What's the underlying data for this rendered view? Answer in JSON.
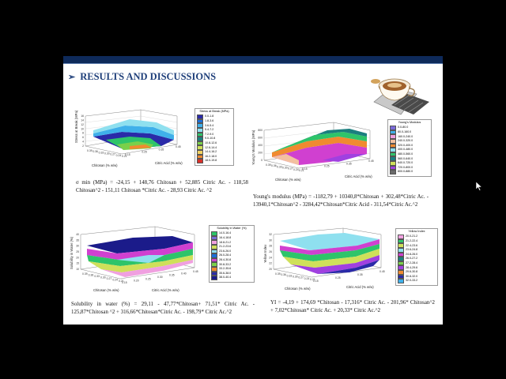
{
  "slide": {
    "title": "RESULTS AND DISCUSSIONS",
    "title_bullet": "➢",
    "theme_colors": {
      "topbar": "#0e2a5a",
      "title": "#1f3f7a"
    }
  },
  "panels": [
    {
      "id": "stress",
      "legend_title": "Stress at Break (MPa)",
      "legend": [
        "0.0-1.8",
        "1.8-3.6",
        "3.6-5.4",
        "5.4-7.2",
        "7.2-9.0",
        "9.0-10.8",
        "10.8-12.6",
        "12.6-14.4",
        "14.4-16.2",
        "16.2-18.0",
        "18.0-19.8"
      ],
      "y_axis_label": "Stress at Break (MPa)",
      "x_axis_label": "Chitosan (% w/w)",
      "z_axis_label": "Citric Acid (% w/w)",
      "y_ticks": [
        "16",
        "14",
        "12",
        "10",
        "8",
        "6",
        "4",
        "2"
      ],
      "x_ticks": [
        "0.39",
        "0.36",
        "0.33",
        "0.30",
        "0.27",
        "0.24",
        "0.21"
      ],
      "z_ticks": [
        "0.15",
        "0.25",
        "0.35",
        "0.45"
      ],
      "equation": "σ min (MPa) = -24,15 + 148,76 Chitosan + 52,885 Citric Ac. - 118,58 Chitosan^2 - 151,11 Chitosan *Citric Ac. - 28,93 Citric Ac. ^2"
    },
    {
      "id": "young",
      "legend_title": "Young's Modulus",
      "legend": [
        "0.0-80.0",
        "80.0-160.0",
        "160.0-240.0",
        "240.0-320.0",
        "320.0-400.0",
        "400.0-480.0",
        "480.0-560.0",
        "560.0-640.0",
        "640.0-720.0",
        "720.0-800.0",
        "800.0-880.0"
      ],
      "y_axis_label": "Young's Modulus (MPa)",
      "x_axis_label": "Chitosan (% w/w)",
      "z_axis_label": "Citric Acid (% w/w)",
      "y_ticks": [
        "800",
        "600",
        "400",
        "200",
        "0"
      ],
      "x_ticks": [
        "0.39",
        "0.36",
        "0.33",
        "0.30",
        "0.27",
        "0.24",
        "0.21"
      ],
      "z_ticks": [
        "0.15",
        "0.25",
        "0.35",
        "0.45"
      ],
      "equation": "Young's modulus (MPa) = -1182,79 + 10340,8*Chitosan + 302,48*Citric Ac. - 13940,1*Chitosan^2 - 3284,42*Chitosan*Citric Acid - 311,54*Citric Ac.^2"
    },
    {
      "id": "solubility",
      "legend_title": "Solubility in Water (%)",
      "legend": [
        "14.0-16.4",
        "16.4-18.8",
        "18.8-21.2",
        "21.2-23.6",
        "23.6-26.0",
        "26.0-28.4",
        "28.4-30.8",
        "30.8-33.2",
        "33.2-35.6",
        "35.6-38.0",
        "38.0-40.4"
      ],
      "y_axis_label": "Solubility in Water (%)",
      "x_axis_label": "Chitosan (% w/w)",
      "z_axis_label": "Citric Acid (% w/w)",
      "y_ticks": [
        "40",
        "35",
        "30",
        "25",
        "20",
        "15",
        "10"
      ],
      "x_ticks": [
        "0.39",
        "0.36",
        "0.33",
        "0.30",
        "0.27",
        "0.24",
        "0.21"
      ],
      "z_ticks": [
        "0.15",
        "0.20",
        "0.25",
        "0.30",
        "0.35",
        "0.40",
        "0.45"
      ],
      "equation": "Solubility in water (%) = 29,11 - 47,77*Chitosan+ 71,51* Citric Ac. - 125,87*Chitosan ^2 + 316,66*Chitosan*Citric Ac. - 198,79* Citric Ac.^2"
    },
    {
      "id": "yellow",
      "legend_title": "Yellow Index",
      "legend": [
        "20.0-21.2",
        "21.2-22.4",
        "22.4-23.6",
        "23.6-24.8",
        "24.8-26.0",
        "26.0-27.2",
        "27.2-28.4",
        "28.4-29.6",
        "29.6-30.8",
        "30.8-32.0",
        "32.0-33.2"
      ],
      "y_axis_label": "Yellow Index",
      "x_axis_label": "Chitosan (% w/w)",
      "z_axis_label": "Citric Acid (% w/w)",
      "y_ticks": [
        "32",
        "30",
        "28",
        "26",
        "24",
        "22",
        "20"
      ],
      "x_ticks": [
        "0.39",
        "0.36",
        "0.33",
        "0.30",
        "0.27",
        "0.24",
        "0.21"
      ],
      "z_ticks": [
        "0.15",
        "0.25",
        "0.35",
        "0.45"
      ],
      "equation": "YI = -4,19 + 174,69 *Chitosan - 17,316* Citric Ac. - 201,96* Chitosan^2 + 7,02*Chitosan* Citric Ac. + 20,33* Citric Ac.^2"
    }
  ],
  "palette": [
    "#2a2aa8",
    "#1b6fd8",
    "#3fb0ea",
    "#8fe0ef",
    "#bfeff0",
    "#2ec46a",
    "#7ad04a",
    "#cfe05a",
    "#f0d060",
    "#f08a30",
    "#d8302a"
  ]
}
